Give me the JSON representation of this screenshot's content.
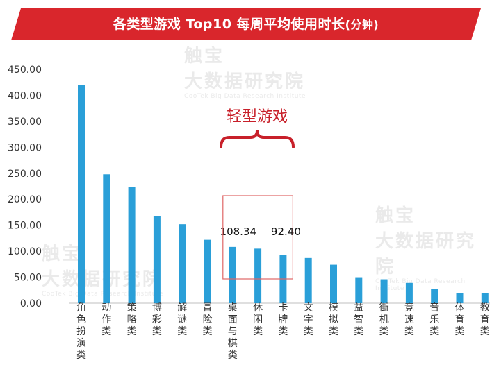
{
  "title": {
    "main": "各类型游戏 Top10 每周平均使用时长",
    "unit": "(分钟)",
    "accent_color": "#d9262c"
  },
  "watermark": {
    "line1": "触宝",
    "line2": "大数据研究院",
    "line3": "CooTek Big Data Research Institute"
  },
  "chart_data": {
    "type": "bar",
    "categories": [
      "角色扮演类",
      "动作类",
      "策略类",
      "博彩类",
      "解谜类",
      "冒险类",
      "桌面与棋类",
      "休闲类",
      "卡牌类",
      "文字类",
      "模拟类",
      "益智类",
      "街机类",
      "竞速类",
      "音乐类",
      "体育类",
      "教育类"
    ],
    "values": [
      420,
      248,
      224,
      168,
      152,
      122,
      108.34,
      105,
      92.4,
      87,
      74,
      50,
      46,
      39,
      27,
      20,
      20
    ],
    "ylim": [
      0,
      450
    ],
    "yticks": [
      "0.00",
      "50.00",
      "100.00",
      "150.00",
      "200.00",
      "250.00",
      "300.00",
      "350.00",
      "400.00",
      "450.00"
    ],
    "bar_color": "#2a9fd8",
    "data_labels": [
      {
        "category": "桌面与棋类",
        "text": "108.34"
      },
      {
        "category": "卡牌类",
        "text": "92.40"
      }
    ],
    "annotation": {
      "text": "轻型游戏",
      "color": "#c8202a",
      "range": [
        "桌面与棋类",
        "卡牌类"
      ]
    },
    "grid": false
  }
}
